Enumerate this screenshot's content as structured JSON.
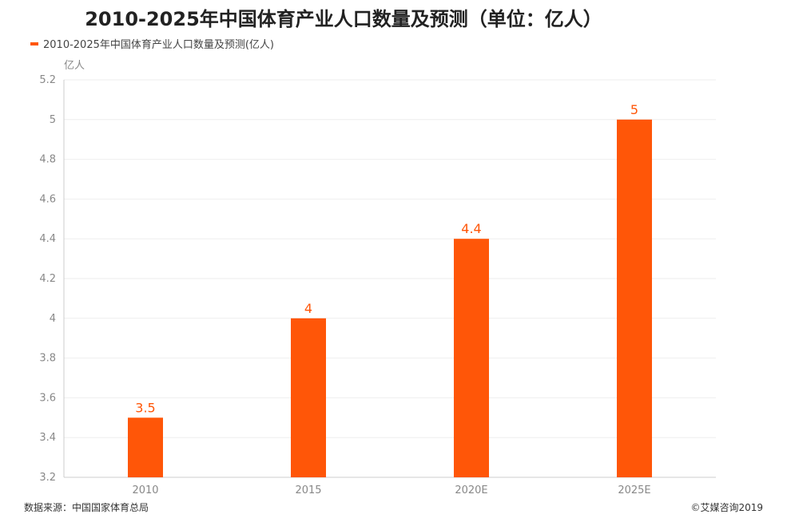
{
  "chart_data": {
    "type": "bar",
    "title": "2010-2025年中国体育产业人口数量及预测（单位：亿人）",
    "categories": [
      "2010",
      "2015",
      "2020E",
      "2025E"
    ],
    "series": [
      {
        "name": "2010-2025年中国体育产业人口数量及预测(亿人)",
        "values": [
          3.5,
          4,
          4.4,
          5
        ]
      }
    ],
    "data_labels": [
      "3.5",
      "4",
      "4.4",
      "5"
    ],
    "ylabel": "亿人",
    "xlabel": "",
    "ylim": [
      3.2,
      5.2
    ],
    "yticks": [
      "3.2",
      "3.4",
      "3.6",
      "3.8",
      "4",
      "4.2",
      "4.4",
      "4.6",
      "4.8",
      "5",
      "5.2"
    ],
    "grid": true,
    "legend_position": "top-left",
    "colors": {
      "bar": "#FF5608",
      "label": "#FF5608",
      "grid": "#EEEEEE",
      "axis": "#CCCCCC"
    }
  },
  "footer": {
    "source": "数据来源：中国国家体育总局",
    "copyright": "©艾媒咨询2019"
  }
}
